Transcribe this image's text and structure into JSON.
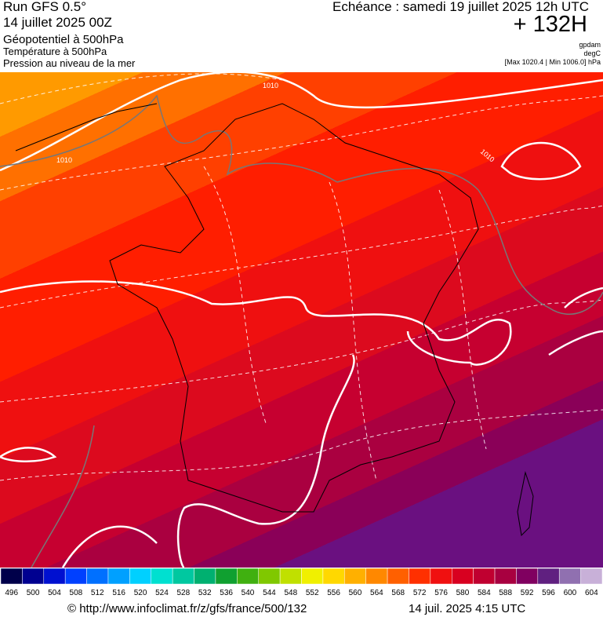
{
  "header": {
    "run": "Run GFS 0.5°",
    "date": "14 juillet 2025 00Z",
    "field1": "Géopotentiel à 500hPa",
    "field2": "Température à 500hPa",
    "field3": "Pression au niveau de la mer",
    "echeance": "Echéance : samedi 19 juillet 2025 12h UTC",
    "offset": "+ 132H",
    "unit1": "gpdam",
    "unit2": "degC",
    "pressure_range": "[Max 1020.4 | Min 1006.0] hPa"
  },
  "map": {
    "isobar_labels": [
      "1010",
      "1010",
      "1010"
    ]
  },
  "scale": {
    "labels": [
      496,
      500,
      504,
      508,
      512,
      516,
      520,
      524,
      528,
      532,
      536,
      540,
      544,
      548,
      552,
      556,
      560,
      564,
      568,
      572,
      576,
      580,
      584,
      588,
      592,
      596,
      600,
      604
    ],
    "colors": [
      "#00004a",
      "#000090",
      "#0010d0",
      "#0040ff",
      "#0070ff",
      "#00a0ff",
      "#00d0ff",
      "#00e0d0",
      "#00c8a0",
      "#00b070",
      "#10a030",
      "#40b010",
      "#80c800",
      "#c0e000",
      "#f0f000",
      "#ffd800",
      "#ffb000",
      "#ff8800",
      "#ff6000",
      "#ff3000",
      "#f01010",
      "#d80020",
      "#c00030",
      "#a80040",
      "#800060",
      "#602080",
      "#9070b0",
      "#c8b0d8"
    ]
  },
  "footer": {
    "url": "© http://www.infoclimat.fr/z/gfs/france/500/132",
    "timestamp": "14 juil. 2025  4:15 UTC"
  }
}
